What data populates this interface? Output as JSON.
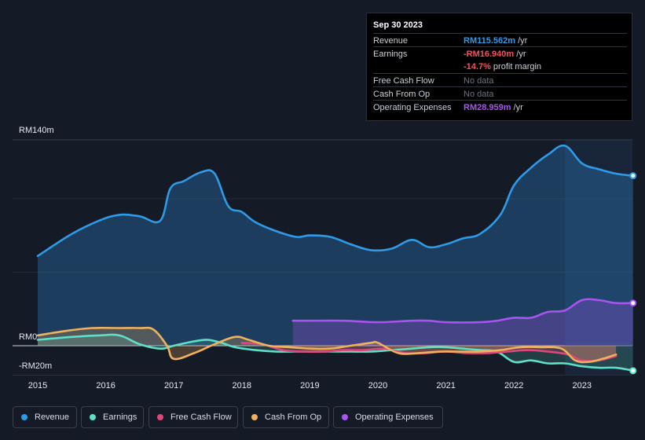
{
  "tooltip": {
    "date": "Sep 30 2023",
    "rows": [
      {
        "label": "Revenue",
        "value": "RM115.562m",
        "unit": " /yr"
      },
      {
        "label": "Earnings",
        "value": "-RM16.940m",
        "unit": " /yr",
        "sub_value": "-14.7%",
        "sub_text": " profit margin"
      },
      {
        "label": "Free Cash Flow",
        "value": "No data"
      },
      {
        "label": "Cash From Op",
        "value": "No data"
      },
      {
        "label": "Operating Expenses",
        "value": "RM28.959m",
        "unit": " /yr"
      }
    ]
  },
  "legend": [
    "Revenue",
    "Earnings",
    "Free Cash Flow",
    "Cash From Op",
    "Operating Expenses"
  ],
  "colors": {
    "revenue": "#2f9be8",
    "earnings": "#5ee0c8",
    "fcf": "#e0467c",
    "cfo": "#efb15e",
    "opex": "#a954f0",
    "background": "#151a27"
  },
  "chart_data": {
    "type": "area",
    "title": "",
    "ylabel": "",
    "y_tick_labels": [
      "RM140m",
      "RM0",
      "-RM20m"
    ],
    "x_tick_labels": [
      "2015",
      "2016",
      "2017",
      "2018",
      "2019",
      "2020",
      "2021",
      "2022",
      "2023"
    ],
    "ylim": [
      -20,
      140
    ],
    "xlim": [
      2015,
      2023.75
    ],
    "series": [
      {
        "name": "Revenue",
        "key": "revenue",
        "x": [
          2015.0,
          2015.5,
          2015.9,
          2016.2,
          2016.5,
          2016.8,
          2016.95,
          2017.15,
          2017.4,
          2017.6,
          2017.8,
          2018.0,
          2018.2,
          2018.5,
          2018.8,
          2019.0,
          2019.3,
          2019.6,
          2019.9,
          2020.2,
          2020.5,
          2020.75,
          2021.0,
          2021.25,
          2021.5,
          2021.8,
          2022.0,
          2022.25,
          2022.5,
          2022.75,
          2023.0,
          2023.25,
          2023.5,
          2023.75
        ],
        "y": [
          61,
          76,
          85,
          89,
          88,
          85,
          107,
          112,
          118,
          117,
          95,
          91,
          84,
          78,
          74,
          75,
          74,
          69,
          65,
          66,
          72,
          67,
          69,
          73,
          76,
          89,
          109,
          121,
          130,
          136,
          124,
          120,
          117,
          115.6
        ]
      },
      {
        "name": "Earnings",
        "key": "earnings",
        "x": [
          2015.0,
          2015.5,
          2015.9,
          2016.2,
          2016.5,
          2016.8,
          2017.0,
          2017.3,
          2017.5,
          2017.7,
          2017.9,
          2018.2,
          2018.5,
          2018.8,
          2019.0,
          2019.3,
          2019.6,
          2019.9,
          2020.2,
          2020.5,
          2020.75,
          2021.0,
          2021.25,
          2021.5,
          2021.75,
          2022.0,
          2022.25,
          2022.5,
          2022.75,
          2023.0,
          2023.25,
          2023.5,
          2023.75
        ],
        "y": [
          4,
          6,
          7,
          7,
          1,
          -2,
          0,
          3,
          4,
          2,
          -1,
          -3,
          -4,
          -4,
          -4,
          -4,
          -4,
          -4,
          -3,
          -2,
          -1,
          -1,
          -2,
          -3,
          -4,
          -11,
          -10,
          -12,
          -12,
          -14,
          -15,
          -15,
          -17
        ]
      },
      {
        "name": "Free Cash Flow",
        "key": "fcf",
        "x": [
          2018.0,
          2018.3,
          2018.6,
          2018.9,
          2019.2,
          2019.5,
          2019.8,
          2020.1,
          2020.4,
          2020.7,
          2021.0,
          2021.3,
          2021.6,
          2021.9,
          2022.2,
          2022.5,
          2022.8,
          2023.0,
          2023.25,
          2023.5
        ],
        "y": [
          2,
          1,
          -3,
          -4,
          -4,
          -3,
          -3,
          -2,
          -5,
          -5,
          -4,
          -5,
          -5,
          -4,
          -3,
          -4,
          -6,
          -10,
          -10,
          -7
        ]
      },
      {
        "name": "Cash From Op",
        "key": "cfo",
        "x": [
          2015.0,
          2015.4,
          2015.8,
          2016.2,
          2016.5,
          2016.7,
          2016.9,
          2017.0,
          2017.3,
          2017.6,
          2017.9,
          2018.1,
          2018.4,
          2018.7,
          2019.0,
          2019.3,
          2019.6,
          2019.9,
          2020.0,
          2020.3,
          2020.6,
          2020.9,
          2021.2,
          2021.5,
          2021.8,
          2022.1,
          2022.4,
          2022.7,
          2022.9,
          2023.1,
          2023.3,
          2023.5
        ],
        "y": [
          7,
          10,
          12,
          12,
          12,
          11,
          0,
          -9,
          -5,
          1,
          6,
          4,
          0,
          -1,
          -2,
          -2,
          0,
          2,
          2,
          -5,
          -5,
          -4,
          -4,
          -4,
          -3,
          -1,
          -1,
          -2,
          -10,
          -11,
          -9,
          -6
        ]
      },
      {
        "name": "Operating Expenses",
        "key": "opex",
        "x": [
          2018.75,
          2019.0,
          2019.5,
          2020.0,
          2020.5,
          2020.75,
          2021.0,
          2021.5,
          2021.75,
          2022.0,
          2022.25,
          2022.5,
          2022.75,
          2023.0,
          2023.25,
          2023.5,
          2023.75
        ],
        "y": [
          17,
          17,
          17,
          16,
          17,
          17,
          16,
          16,
          17,
          19,
          19,
          23,
          24,
          31,
          31,
          29,
          29
        ]
      }
    ]
  }
}
